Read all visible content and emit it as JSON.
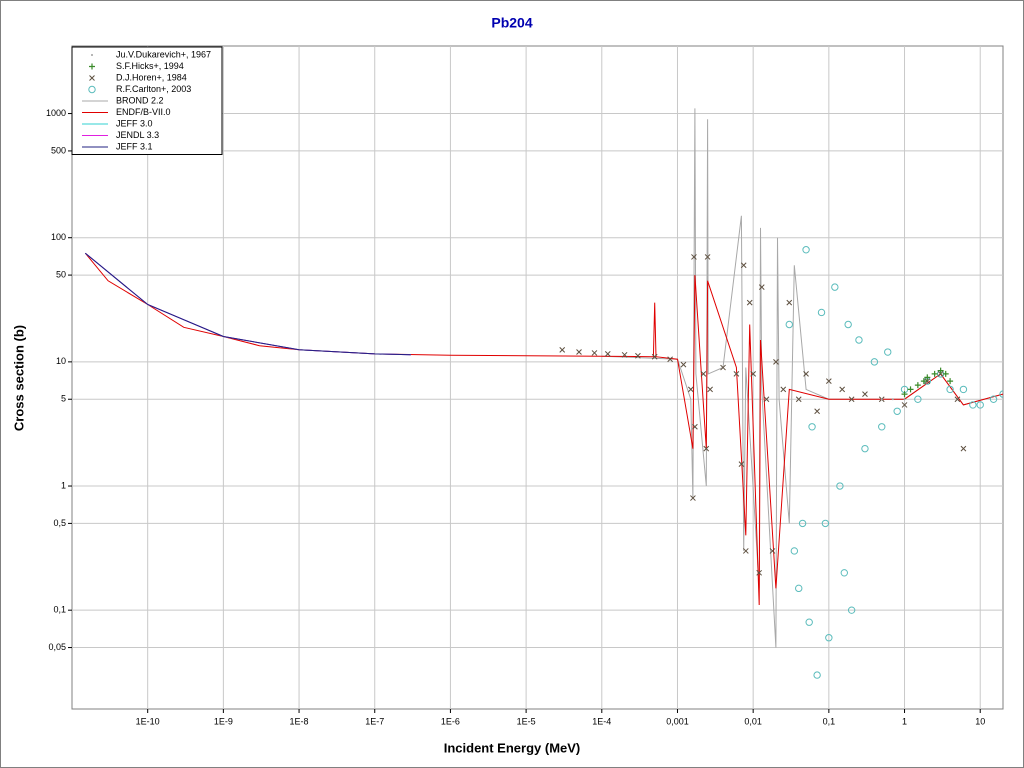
{
  "chart_data": {
    "type": "line",
    "title": "Pb204",
    "xlabel": "Incident Energy (MeV)",
    "ylabel": "Cross section (b)",
    "xlog": true,
    "ylog": true,
    "grid": true,
    "legend": "upper left",
    "xlim": [
      1e-11,
      20
    ],
    "ylim": [
      0.016,
      3500
    ],
    "xticks": [
      {
        "value": 1e-10,
        "label": "1E-10"
      },
      {
        "value": 1e-09,
        "label": "1E-9"
      },
      {
        "value": 1e-08,
        "label": "1E-8"
      },
      {
        "value": 1e-07,
        "label": "1E-7"
      },
      {
        "value": 1e-06,
        "label": "1E-6"
      },
      {
        "value": 1e-05,
        "label": "1E-5"
      },
      {
        "value": 0.0001,
        "label": "1E-4"
      },
      {
        "value": 0.001,
        "label": "0,001"
      },
      {
        "value": 0.01,
        "label": "0,01"
      },
      {
        "value": 0.1,
        "label": "0,1"
      },
      1,
      10
    ],
    "yticks": [
      {
        "value": 0.05,
        "label": "0,05"
      },
      {
        "value": 0.1,
        "label": "0,1"
      },
      {
        "value": 0.5,
        "label": "0,5"
      },
      1,
      5,
      10,
      50,
      100,
      500,
      1000
    ],
    "series": [
      {
        "name": "Ju.V.Dukarevich+, 1967",
        "style": "dot",
        "color": "#a0a0a0",
        "x": [
          0.5,
          0.7,
          1
        ],
        "values": [
          5,
          5,
          5
        ]
      },
      {
        "name": "S.F.Hicks+, 1994",
        "style": "plus",
        "color": "#3a8a2a",
        "x": [
          1,
          1.2,
          1.5,
          1.8,
          2,
          2.5,
          3,
          3.5,
          4
        ],
        "values": [
          5.5,
          6,
          6.5,
          7,
          7.5,
          8,
          8.5,
          8,
          7
        ]
      },
      {
        "name": "D.J.Horen+, 1984",
        "style": "cross",
        "color": "#5e5040",
        "x": [
          3e-05,
          5e-05,
          8e-05,
          0.00012,
          0.0002,
          0.0003,
          0.0005,
          0.0008,
          0.0012,
          0.0015,
          0.0016,
          0.00165,
          0.0017,
          0.0022,
          0.0024,
          0.0025,
          0.0027,
          0.004,
          0.006,
          0.007,
          0.0075,
          0.008,
          0.009,
          0.01,
          0.012,
          0.013,
          0.015,
          0.018,
          0.02,
          0.025,
          0.03,
          0.04,
          0.05,
          0.07,
          0.1,
          0.15,
          0.2,
          0.3,
          0.5,
          1,
          2,
          3,
          5,
          6
        ],
        "values": [
          12.5,
          12,
          11.8,
          11.6,
          11.4,
          11.2,
          11,
          10.5,
          9.5,
          6,
          0.8,
          70,
          3,
          8,
          2,
          70,
          6,
          9,
          8,
          1.5,
          60,
          0.3,
          30,
          8,
          0.2,
          40,
          5,
          0.3,
          10,
          6,
          30,
          5,
          8,
          4,
          7,
          6,
          5,
          5.5,
          5,
          4.5,
          7,
          8,
          5,
          2
        ]
      },
      {
        "name": "R.F.Carlton+, 2003",
        "style": "circle",
        "color": "#5bbcbc",
        "x": [
          0.03,
          0.035,
          0.04,
          0.045,
          0.05,
          0.055,
          0.06,
          0.07,
          0.08,
          0.09,
          0.1,
          0.12,
          0.14,
          0.16,
          0.18,
          0.2,
          0.25,
          0.3,
          0.4,
          0.5,
          0.6,
          0.8,
          1,
          1.5,
          2,
          3,
          4,
          6,
          8,
          10,
          15,
          20
        ],
        "values": [
          20,
          0.3,
          0.15,
          0.5,
          80,
          0.08,
          3,
          0.03,
          25,
          0.5,
          0.06,
          40,
          1,
          0.2,
          20,
          0.1,
          15,
          2,
          10,
          3,
          12,
          4,
          6,
          5,
          7,
          8,
          6,
          6,
          4.5,
          4.5,
          5,
          5.5
        ]
      },
      {
        "name": "BROND 2.2",
        "style": "line",
        "color": "#a8a8a8",
        "x": [
          0.0001,
          0.001,
          0.0015,
          0.0016,
          0.0017,
          0.00175,
          0.0024,
          0.0025,
          0.00255,
          0.004,
          0.007,
          0.0075,
          0.008,
          0.012,
          0.0125,
          0.013,
          0.02,
          0.021,
          0.022,
          0.03,
          0.035,
          0.05,
          0.1,
          1,
          3,
          6,
          20
        ],
        "values": [
          11.1,
          10.5,
          5,
          0.8,
          1100,
          8,
          1,
          900,
          8,
          9,
          150,
          0.3,
          9,
          0.15,
          120,
          6,
          0.05,
          100,
          5,
          0.5,
          60,
          6,
          5,
          5,
          8,
          4.5,
          5.5
        ]
      },
      {
        "name": "ENDF/B-VII.0",
        "style": "line",
        "color": "#e00000",
        "x": [
          1.5e-11,
          3e-11,
          1e-10,
          3e-10,
          1e-09,
          3e-09,
          1e-08,
          1e-07,
          1e-06,
          1e-05,
          0.0001,
          0.00048,
          0.0005,
          0.00052,
          0.001,
          0.0016,
          0.0017,
          0.0024,
          0.0025,
          0.006,
          0.008,
          0.009,
          0.012,
          0.0125,
          0.02,
          0.03,
          0.1,
          1,
          3,
          6,
          20
        ],
        "values": [
          75,
          45,
          29,
          19,
          16,
          13.5,
          12.5,
          11.6,
          11.3,
          11.2,
          11.1,
          11,
          30,
          11,
          10.5,
          2,
          50,
          2,
          45,
          9,
          0.4,
          20,
          0.11,
          15,
          0.15,
          6,
          5,
          5,
          8,
          4.5,
          5.5
        ]
      },
      {
        "name": "JEFF 3.0",
        "style": "line",
        "color": "#30d0d0",
        "x": [
          1.5e-11,
          1e-10,
          1e-09,
          1e-08,
          1e-07,
          3e-07
        ],
        "values": [
          75,
          29,
          16,
          12.5,
          11.6,
          11.4
        ]
      },
      {
        "name": "JENDL 3.3",
        "style": "line",
        "color": "#e020e0",
        "x": [
          1.5e-11,
          1e-10,
          1e-09,
          1e-08,
          1e-07,
          3e-07
        ],
        "values": [
          75,
          29,
          16,
          12.5,
          11.6,
          11.4
        ]
      },
      {
        "name": "JEFF 3.1",
        "style": "line",
        "color": "#202080",
        "x": [
          1.5e-11,
          1e-10,
          1e-09,
          1e-08,
          1e-07,
          3e-07
        ],
        "values": [
          75,
          29,
          16,
          12.5,
          11.6,
          11.4
        ]
      }
    ]
  }
}
